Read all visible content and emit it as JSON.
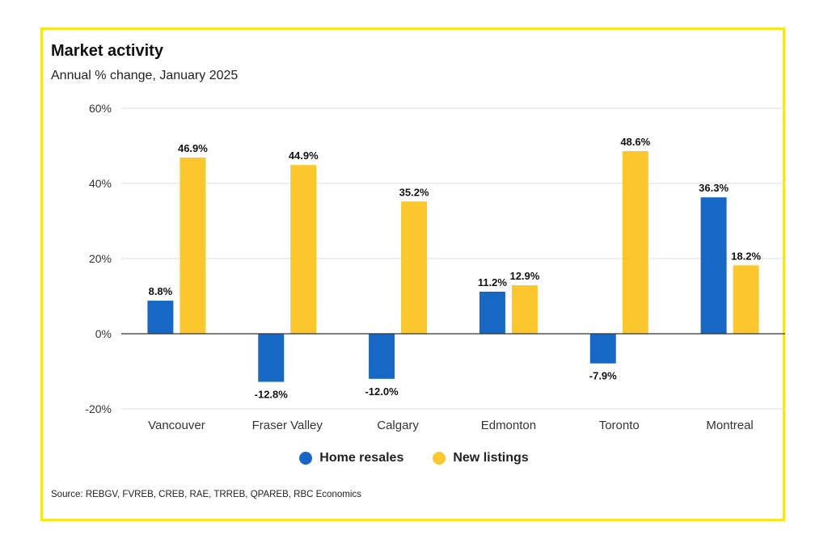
{
  "colors": {
    "border": "#f5e61e",
    "series1": "#1768c4",
    "series2": "#fbc72d"
  },
  "title": "Market activity",
  "subtitle": "Annual % change, January 2025",
  "legend": [
    {
      "label": "Home resales",
      "color": "#1768c4"
    },
    {
      "label": "New listings",
      "color": "#fbc72d"
    }
  ],
  "source": "Source: REBGV, FVREB, CREB, RAE, TRREB, QPAREB, RBC Economics",
  "chart_data": {
    "type": "bar",
    "title": "Market activity",
    "subtitle": "Annual % change, January 2025",
    "categories": [
      "Vancouver",
      "Fraser Valley",
      "Calgary",
      "Edmonton",
      "Toronto",
      "Montreal"
    ],
    "series": [
      {
        "name": "Home resales",
        "values": [
          8.8,
          -12.8,
          -12.0,
          11.2,
          -7.9,
          36.3
        ],
        "labels": [
          "8.8%",
          "-12.8%",
          "-12.0%",
          "11.2%",
          "-7.9%",
          "36.3%"
        ]
      },
      {
        "name": "New listings",
        "values": [
          46.9,
          44.9,
          35.2,
          12.9,
          48.6,
          18.2
        ],
        "labels": [
          "46.9%",
          "44.9%",
          "35.2%",
          "12.9%",
          "48.6%",
          "18.2%"
        ]
      }
    ],
    "ylim": [
      -20,
      60
    ],
    "yticks": [
      60,
      40,
      20,
      0,
      -20
    ],
    "ytick_labels": [
      "60%",
      "40%",
      "20%",
      "0%",
      "-20%"
    ],
    "grid": true,
    "legend_position": "bottom-center"
  }
}
